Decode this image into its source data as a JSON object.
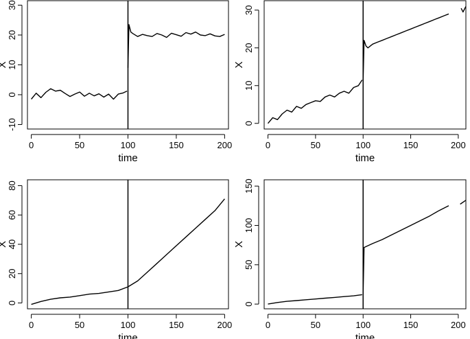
{
  "chart_data": [
    {
      "type": "line",
      "xlabel": "time",
      "ylabel": "X",
      "xlim": [
        -4,
        204
      ],
      "ylim": [
        -11.5,
        31.5
      ],
      "xticks": [
        0,
        50,
        100,
        150,
        200
      ],
      "yticks": [
        -10,
        0,
        10,
        20,
        30
      ],
      "changepoint": 100,
      "series": [
        {
          "segments": [
            {
              "x": [
                0,
                5,
                10,
                15,
                20,
                25,
                30,
                35,
                40,
                45,
                50,
                55,
                60,
                65,
                70,
                75,
                80,
                85,
                90,
                95,
                99
              ],
              "y": [
                -1.5,
                0.5,
                -1,
                0.8,
                2,
                1.2,
                1.5,
                0.4,
                -0.6,
                0.2,
                0.9,
                -0.5,
                0.5,
                -0.4,
                0.3,
                -0.8,
                0.2,
                -1.5,
                0.2,
                0.6,
                1.2
              ]
            },
            {
              "x": [
                100,
                101,
                103,
                105,
                110,
                115,
                120,
                125,
                130,
                135,
                140,
                145,
                150,
                155,
                160,
                165,
                170,
                175,
                180,
                185,
                190,
                195,
                200
              ],
              "y": [
                9,
                23.5,
                21,
                20.5,
                19.5,
                20.2,
                19.8,
                19.5,
                20.5,
                20,
                19.2,
                20.6,
                20.1,
                19.6,
                20.8,
                20.3,
                21,
                20,
                19.8,
                20.4,
                19.7,
                19.5,
                20.2
              ]
            }
          ]
        }
      ]
    },
    {
      "type": "line",
      "xlabel": "time",
      "ylabel": "X",
      "xlim": [
        -4,
        208
      ],
      "ylim": [
        -1.5,
        32.5
      ],
      "xticks": [
        0,
        50,
        100,
        150,
        200
      ],
      "yticks": [
        0,
        10,
        20,
        30
      ],
      "changepoint": 100,
      "series": [
        {
          "segments": [
            {
              "x": [
                0,
                5,
                10,
                15,
                20,
                25,
                30,
                35,
                40,
                45,
                50,
                55,
                60,
                65,
                70,
                75,
                80,
                85,
                90,
                95,
                99
              ],
              "y": [
                0,
                1.5,
                1,
                2.5,
                3.5,
                3,
                4.5,
                4,
                5,
                5.5,
                6,
                5.8,
                7,
                7.5,
                7,
                8,
                8.5,
                8,
                9.5,
                10,
                11.5
              ]
            },
            {
              "x": [
                100,
                101,
                103,
                105,
                110,
                115,
                120,
                125,
                130,
                135,
                140,
                145,
                150,
                155,
                160,
                165,
                170,
                175,
                180,
                185,
                190
              ],
              "y": [
                11,
                22,
                20.5,
                20,
                21,
                21.5,
                22,
                22.5,
                23,
                23.5,
                24,
                24.5,
                25,
                25.5,
                26,
                26.5,
                27,
                27.5,
                28,
                28.5,
                29
              ]
            },
            {
              "x": [
                203,
                205,
                208
              ],
              "y": [
                30.5,
                29.5,
                31
              ]
            }
          ]
        }
      ]
    },
    {
      "type": "line",
      "xlabel": "time",
      "ylabel": "X",
      "xlim": [
        -4,
        204
      ],
      "ylim": [
        -4,
        84
      ],
      "xticks": [
        0,
        50,
        100,
        150,
        200
      ],
      "yticks": [
        0,
        20,
        40,
        60,
        80
      ],
      "changepoint": 100,
      "series": [
        {
          "segments": [
            {
              "x": [
                0,
                10,
                20,
                30,
                40,
                50,
                60,
                70,
                80,
                90,
                100,
                110,
                120,
                130,
                140,
                150,
                160,
                170,
                180,
                190,
                200
              ],
              "y": [
                -1,
                1,
                2.5,
                3.5,
                4,
                5,
                6,
                6.5,
                7.5,
                8.5,
                11,
                15,
                21,
                27,
                33,
                39,
                45,
                51,
                57,
                63,
                71
              ]
            }
          ]
        }
      ]
    },
    {
      "type": "line",
      "xlabel": "time",
      "ylabel": "X",
      "xlim": [
        -4,
        208
      ],
      "ylim": [
        -6,
        158
      ],
      "xticks": [
        0,
        50,
        100,
        150,
        200
      ],
      "yticks": [
        0,
        50,
        100,
        150
      ],
      "changepoint": 100,
      "series": [
        {
          "segments": [
            {
              "x": [
                0,
                10,
                20,
                30,
                40,
                50,
                60,
                70,
                80,
                90,
                99
              ],
              "y": [
                0,
                2,
                3.5,
                4.5,
                5.5,
                6.5,
                7.5,
                8.5,
                9.5,
                10.5,
                12
              ]
            },
            {
              "x": [
                100,
                101,
                110,
                120,
                130,
                140,
                150,
                160,
                170,
                180,
                190
              ],
              "y": [
                12,
                72,
                77,
                82,
                88,
                94,
                100,
                106,
                112,
                119,
                125
              ]
            },
            {
              "x": [
                202,
                208
              ],
              "y": [
                127,
                132
              ]
            }
          ]
        }
      ]
    }
  ]
}
